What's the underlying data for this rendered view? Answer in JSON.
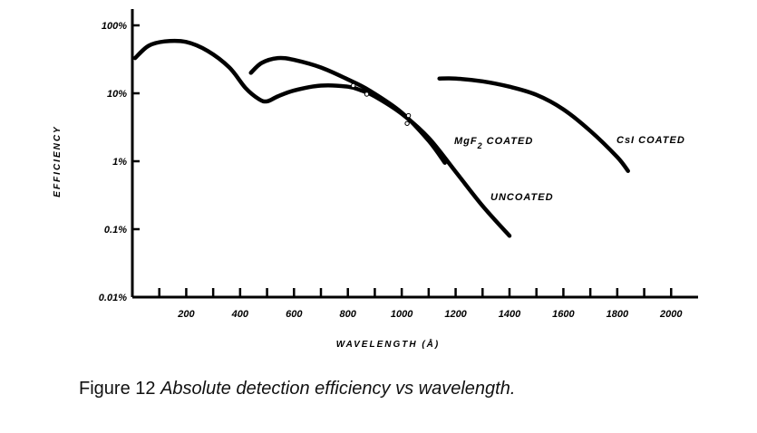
{
  "chart_data": {
    "type": "line",
    "xlabel": "WAVELENGTH (Å)",
    "ylabel": "EFFICIENCY",
    "xlim": [
      0,
      2100
    ],
    "ylim": [
      0.01,
      100
    ],
    "y_scale": "log",
    "x_ticks": [
      200,
      400,
      600,
      800,
      1000,
      1200,
      1400,
      1600,
      1800,
      2000
    ],
    "x_tick_labels": [
      "200",
      "400",
      "600",
      "800",
      "1000",
      "1200",
      "1400",
      "1600",
      "1800",
      "2000"
    ],
    "y_ticks": [
      0.01,
      0.1,
      1,
      10,
      100
    ],
    "y_tick_labels": [
      "0.01%",
      "0.1%",
      "1%",
      "10%",
      "100%"
    ],
    "grid": false,
    "series": [
      {
        "name": "UNCOATED",
        "x": [
          10,
          60,
          120,
          200,
          280,
          360,
          420,
          470,
          500,
          540,
          600,
          700,
          800,
          850,
          900,
          1000,
          1100,
          1200,
          1300,
          1400
        ],
        "y": [
          33,
          50,
          58,
          57,
          42,
          24,
          12,
          8.2,
          7.6,
          9,
          11,
          13,
          12.5,
          11,
          9,
          5,
          2.2,
          0.7,
          0.22,
          0.08
        ]
      },
      {
        "name": "MgF2 COATED",
        "x": [
          440,
          480,
          540,
          600,
          700,
          800,
          880,
          1000,
          1100,
          1160
        ],
        "y": [
          20,
          28,
          33,
          31,
          24,
          16,
          11,
          5.2,
          2,
          0.95
        ],
        "label_main": "MgF",
        "label_sub": "2",
        "label_rest": " COATED"
      },
      {
        "name": "CsI COATED",
        "x": [
          1140,
          1200,
          1300,
          1400,
          1500,
          1600,
          1700,
          1800,
          1840
        ],
        "y": [
          16.5,
          16.5,
          15,
          12.5,
          9.5,
          5.8,
          2.8,
          1.15,
          0.72
        ],
        "label": "CsI COATED"
      }
    ],
    "markers": [
      {
        "x": 820,
        "y": 13
      },
      {
        "x": 870,
        "y": 9.7
      },
      {
        "x": 1020,
        "y": 3.6
      },
      {
        "x": 1025,
        "y": 4.7
      }
    ]
  },
  "caption": {
    "number": "Figure 12",
    "text": "Absolute detection efficiency vs wavelength."
  },
  "colors": {
    "ink": "#000000",
    "background": "#ffffff"
  }
}
